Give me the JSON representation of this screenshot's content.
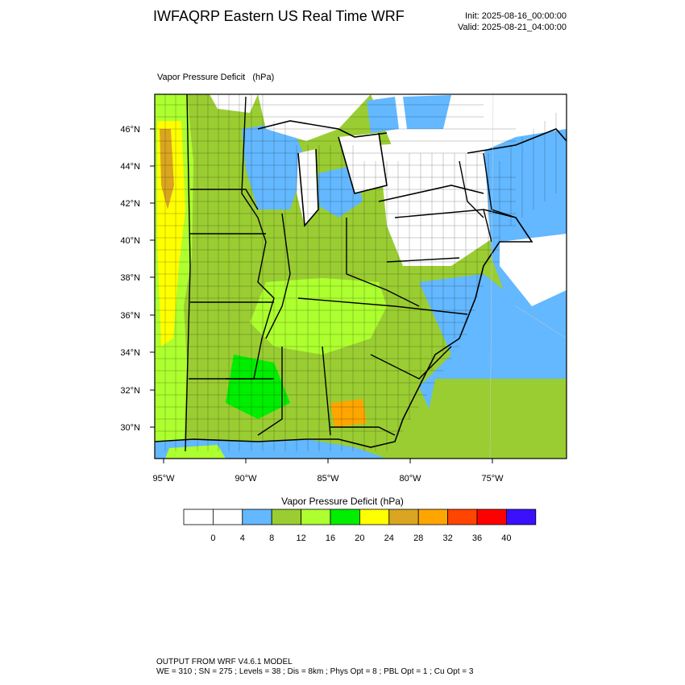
{
  "header": {
    "title": "IWFAQRP Eastern US Real Time WRF",
    "init": "Init: 2025-08-16_00:00:00",
    "valid": "Valid: 2025-08-21_04:00:00"
  },
  "plot": {
    "field_label": "Vapor Pressure Deficit   (hPa)",
    "lat_labels": [
      "46°N",
      "44°N",
      "42°N",
      "40°N",
      "38°N",
      "36°N",
      "34°N",
      "32°N",
      "30°N"
    ],
    "lon_labels": [
      "95°W",
      "90°W",
      "85°W",
      "80°W",
      "75°W"
    ]
  },
  "colorbar": {
    "title": "Vapor Pressure Deficit  (hPa)",
    "tick_labels": [
      "0",
      "4",
      "8",
      "12",
      "16",
      "20",
      "24",
      "28",
      "32",
      "36",
      "40"
    ],
    "colors": [
      "#ffffff",
      "#ffffff",
      "#63b8ff",
      "#9acd32",
      "#adff2f",
      "#00ee00",
      "#ffff00",
      "#daa520",
      "#ffa500",
      "#ff4500",
      "#ff0000",
      "#3a10ff"
    ]
  },
  "footer": {
    "line1": "OUTPUT FROM WRF V4.6.1 MODEL",
    "line2": "WE = 310 ; SN = 275 ; Levels = 38 ; Dis = 8km ; Phys Opt = 8 ; PBL Opt = 1 ; Cu Opt = 3"
  }
}
